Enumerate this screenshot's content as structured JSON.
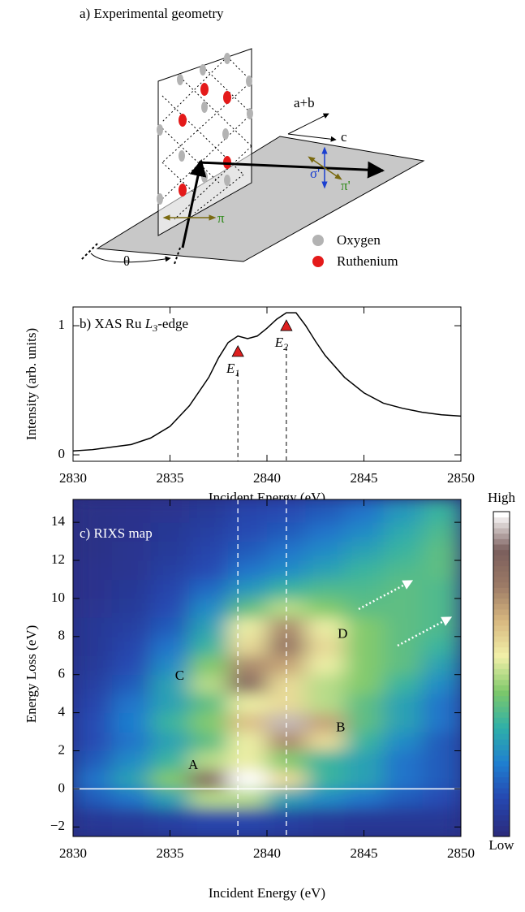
{
  "diagram": {
    "title": "a) Experimental geometry",
    "axis_ab": "a+b",
    "axis_c": "c",
    "sigma_out": "σ'",
    "pi_out": "π'",
    "pi_in": "π",
    "angle": "θ",
    "legend": [
      "Oxygen",
      "Ruthenium"
    ]
  },
  "chart_data": [
    {
      "type": "line",
      "title": [
        "b) XAS Ru ",
        "L",
        "3",
        "-edge"
      ],
      "xlabel": "Incident Energy (eV)",
      "ylabel": "Intensity (arb. units)",
      "x": [
        2830,
        2831,
        2832,
        2833,
        2834,
        2835,
        2836,
        2837,
        2837.5,
        2838,
        2838.5,
        2839,
        2839.5,
        2840,
        2840.5,
        2841,
        2841.5,
        2842,
        2842.5,
        2843,
        2844,
        2845,
        2846,
        2847,
        2848,
        2849,
        2850
      ],
      "series": [
        {
          "color": "#000000",
          "values": [
            0.03,
            0.04,
            0.06,
            0.08,
            0.13,
            0.22,
            0.38,
            0.6,
            0.75,
            0.87,
            0.92,
            0.9,
            0.92,
            0.98,
            1.05,
            1.1,
            1.1,
            1.0,
            0.88,
            0.77,
            0.6,
            0.48,
            0.4,
            0.36,
            0.33,
            0.31,
            0.3
          ]
        }
      ],
      "markers": [
        {
          "label": "E",
          "sub": "1",
          "x": 2838.5,
          "y": 0.8,
          "color": "#dd1f1f"
        },
        {
          "label": "E",
          "sub": "2",
          "x": 2841,
          "y": 1.0,
          "color": "#dd1f1f"
        }
      ],
      "xlim": [
        2830,
        2850
      ],
      "ylim": [
        -0.05,
        1.145
      ],
      "xticks": [
        2830,
        2835,
        2840,
        2845,
        2850
      ],
      "yticks": [
        0,
        1
      ]
    },
    {
      "type": "heatmap",
      "title": "c) RIXS map",
      "xlabel": "Incident Energy (eV)",
      "ylabel": "Energy Loss (eV)",
      "x": [
        2831,
        2833,
        2835,
        2837,
        2839,
        2841,
        2843,
        2845,
        2847,
        2849
      ],
      "y": [
        -1.5,
        -0.5,
        0.5,
        1.5,
        2.5,
        3.5,
        4.5,
        5.5,
        6.5,
        7.5,
        8.5,
        9.5,
        10.5,
        11.5,
        12.5,
        13.5,
        14.5
      ],
      "z": [
        [
          0.05,
          0.06,
          0.08,
          0.1,
          0.1,
          0.08,
          0.06,
          0.05,
          0.05,
          0.05
        ],
        [
          0.15,
          0.2,
          0.3,
          0.5,
          0.5,
          0.3,
          0.25,
          0.2,
          0.15,
          0.12
        ],
        [
          0.2,
          0.3,
          0.45,
          0.85,
          1.0,
          0.6,
          0.35,
          0.3,
          0.2,
          0.15
        ],
        [
          0.15,
          0.25,
          0.35,
          0.5,
          0.55,
          0.45,
          0.35,
          0.3,
          0.2,
          0.15
        ],
        [
          0.12,
          0.2,
          0.3,
          0.4,
          0.55,
          0.75,
          0.6,
          0.35,
          0.25,
          0.15
        ],
        [
          0.12,
          0.22,
          0.35,
          0.45,
          0.65,
          0.95,
          0.7,
          0.4,
          0.3,
          0.2
        ],
        [
          0.1,
          0.2,
          0.3,
          0.4,
          0.55,
          0.6,
          0.5,
          0.4,
          0.3,
          0.2
        ],
        [
          0.08,
          0.15,
          0.3,
          0.5,
          0.85,
          0.6,
          0.5,
          0.45,
          0.35,
          0.25
        ],
        [
          0.06,
          0.12,
          0.25,
          0.45,
          0.75,
          0.7,
          0.55,
          0.45,
          0.4,
          0.3
        ],
        [
          0.05,
          0.1,
          0.2,
          0.35,
          0.6,
          0.8,
          0.6,
          0.45,
          0.4,
          0.35
        ],
        [
          0.05,
          0.08,
          0.15,
          0.3,
          0.55,
          0.75,
          0.55,
          0.45,
          0.4,
          0.38
        ],
        [
          0.04,
          0.06,
          0.12,
          0.25,
          0.4,
          0.5,
          0.45,
          0.4,
          0.4,
          0.38
        ],
        [
          0.03,
          0.05,
          0.1,
          0.18,
          0.28,
          0.35,
          0.38,
          0.38,
          0.4,
          0.38
        ],
        [
          0.03,
          0.04,
          0.08,
          0.12,
          0.2,
          0.25,
          0.3,
          0.35,
          0.38,
          0.4
        ],
        [
          0.02,
          0.04,
          0.06,
          0.1,
          0.15,
          0.2,
          0.25,
          0.3,
          0.35,
          0.4
        ],
        [
          0.02,
          0.03,
          0.05,
          0.08,
          0.12,
          0.15,
          0.2,
          0.25,
          0.32,
          0.38
        ],
        [
          0.02,
          0.03,
          0.04,
          0.06,
          0.1,
          0.12,
          0.15,
          0.2,
          0.28,
          0.35
        ]
      ],
      "colormap": [
        "#2b2c7e",
        "#2547b0",
        "#1f7fd0",
        "#2fb0a8",
        "#7dc86a",
        "#f2f0a8",
        "#d8b880",
        "#9c7a66",
        "#7a5e5c",
        "#ffffff"
      ],
      "colorbar": [
        "High",
        "Low"
      ],
      "annotations": [
        {
          "text": "A",
          "x": 2836.2,
          "y": 1.2
        },
        {
          "text": "B",
          "x": 2843.8,
          "y": 3.2
        },
        {
          "text": "C",
          "x": 2835.5,
          "y": 5.9
        },
        {
          "text": "D",
          "x": 2843.9,
          "y": 8.1
        }
      ],
      "vlines": [
        2838.5,
        2841
      ],
      "hline": 0,
      "xlim": [
        2830,
        2850
      ],
      "ylim": [
        -2.5,
        15.2
      ],
      "xticks": [
        2830,
        2835,
        2840,
        2845,
        2850
      ],
      "yticks": [
        {
          "value": -2,
          "label": "−2"
        },
        0,
        2,
        4,
        6,
        8,
        10,
        12,
        14
      ]
    }
  ]
}
